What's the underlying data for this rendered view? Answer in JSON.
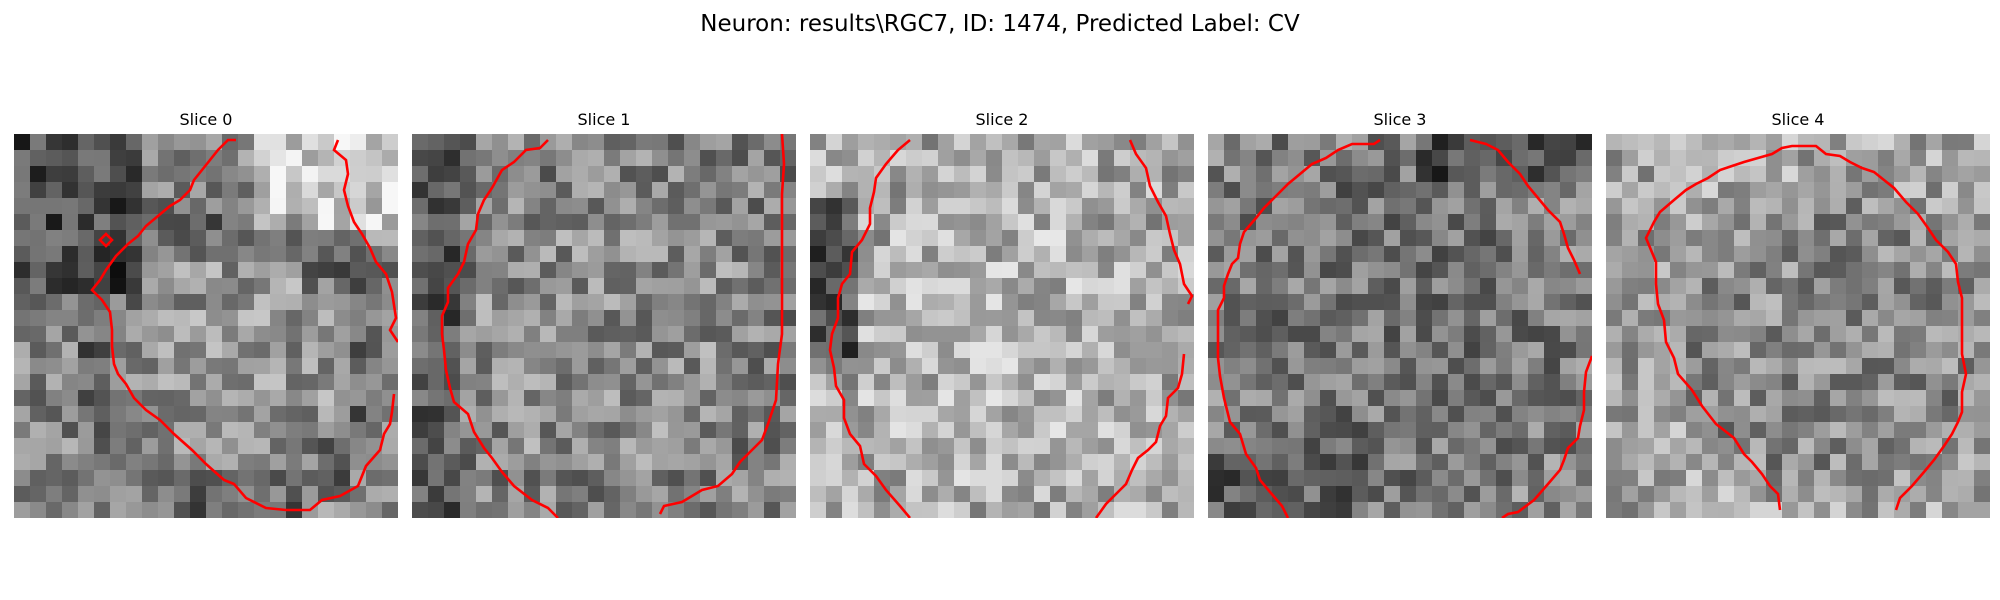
{
  "figure": {
    "title": "Neuron: results\\RGC7, ID: 1474, Predicted Label: CV"
  },
  "colors": {
    "contour": "#ff0000",
    "background": "#ffffff",
    "colormap": "gray"
  },
  "slices": [
    {
      "title": "Slice 0",
      "image_kind": "grayscale-noise-microscopy",
      "contour_color": "red"
    },
    {
      "title": "Slice 1",
      "image_kind": "grayscale-noise-microscopy",
      "contour_color": "red"
    },
    {
      "title": "Slice 2",
      "image_kind": "grayscale-noise-microscopy",
      "contour_color": "red"
    },
    {
      "title": "Slice 3",
      "image_kind": "grayscale-noise-microscopy",
      "contour_color": "red"
    },
    {
      "title": "Slice 4",
      "image_kind": "grayscale-noise-microscopy",
      "contour_color": "red"
    }
  ]
}
